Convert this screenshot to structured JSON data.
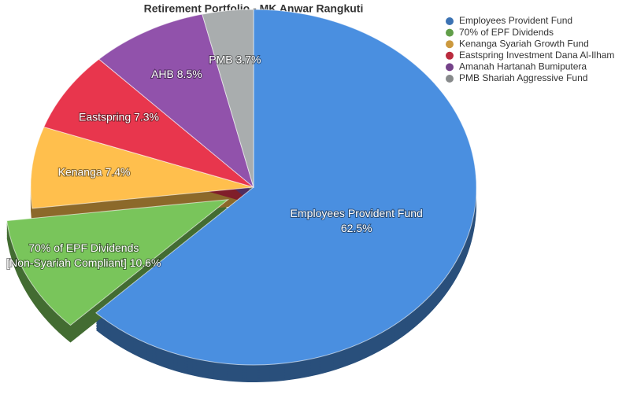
{
  "chart_data": {
    "type": "pie",
    "title": "Retirement Portfolio - MK Anwar Rangkuti",
    "labels": [
      "Employees Provident Fund",
      "70% of EPF Dividends",
      "Kenanga Syariah Growth Fund",
      "Eastspring Investment Dana Al-Ilham",
      "Amanah Hartanah Bumiputera",
      "PMB Shariah Aggressive Fund"
    ],
    "values": [
      62.5,
      10.6,
      7.4,
      7.3,
      8.5,
      3.7
    ],
    "value_labels": [
      [
        "Employees Provident Fund",
        "62.5%"
      ],
      [
        "70% of EPF Dividends",
        "[Non-Syariah Compliant] 10.6%"
      ],
      [
        "Kenanga 7.4%"
      ],
      [
        "Eastspring 7.3%"
      ],
      [
        "AHB 8.5%"
      ],
      [
        "PMB 3.7%"
      ]
    ],
    "colors": [
      "#4a8fe0",
      "#79c55b",
      "#ffbf4d",
      "#e8364d",
      "#9152ab",
      "#a9adae"
    ],
    "exploded_slice": 1,
    "legend": "top-right"
  }
}
